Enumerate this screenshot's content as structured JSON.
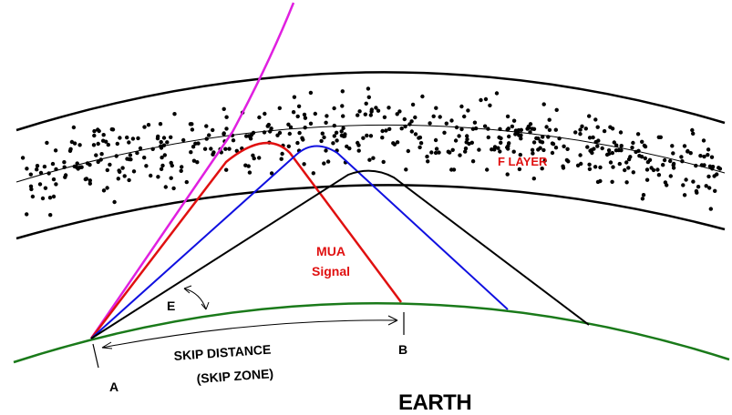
{
  "labels": {
    "f_layer": "F LAYER",
    "mua_line1": "MUA",
    "mua_line2": "Signal",
    "angle": "E",
    "point_a": "A",
    "point_b": "B",
    "skip_line1": "SKIP DISTANCE",
    "skip_line2": "(SKIP ZONE)",
    "earth": "EARTH"
  },
  "colors": {
    "earth_surface": "#1a7a1a",
    "escaping_ray": "#e020e0",
    "mua_ray": "#e01010",
    "blue_ray": "#1010e0",
    "low_ray": "#000000",
    "layer_boundary": "#000000",
    "label_red": "#e01010"
  }
}
